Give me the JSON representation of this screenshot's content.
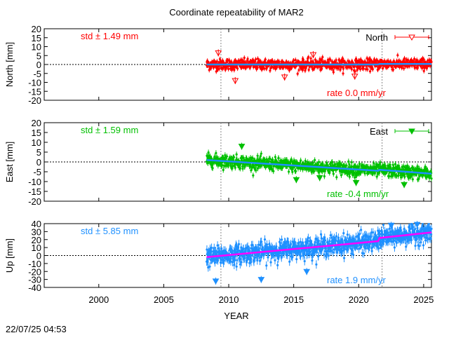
{
  "chart_data": {
    "type": "scatter",
    "title": "Coordinate repeatability of MAR2",
    "xlabel": "YEAR",
    "xlim": [
      1995.8,
      2025.6
    ],
    "xticks": [
      2000,
      2005,
      2010,
      2015,
      2020,
      2025
    ],
    "vlines": [
      2009.4,
      2021.8
    ],
    "timestamp": "22/07/25 04:53",
    "panels": [
      {
        "name": "North",
        "ylabel": "North [mm]",
        "ylim": [
          -20,
          20
        ],
        "yticks": [
          -20,
          -15,
          -10,
          -5,
          0,
          5,
          10,
          15,
          20
        ],
        "color": "#ff0000",
        "trend_color": "#1e90ff",
        "marker": "open-triangle-down",
        "std_label": "std ± 1.49 mm",
        "rate_label": "rate  0.0 mm/yr",
        "legend": "North",
        "data_start": 2008.3,
        "data_end": 2025.6,
        "scatter_sd": 1.49,
        "trend": [
          [
            2008.3,
            0.0
          ],
          [
            2021.5,
            0.0
          ],
          [
            2021.6,
            0.3
          ],
          [
            2025.6,
            0.3
          ]
        ],
        "outliers": [
          [
            2010.5,
            -9.0
          ],
          [
            2014.3,
            -7.0
          ],
          [
            2019.7,
            -6.5
          ],
          [
            2009.2,
            6.5
          ],
          [
            2016.5,
            5.5
          ]
        ]
      },
      {
        "name": "East",
        "ylabel": "East [mm]",
        "ylim": [
          -20,
          20
        ],
        "yticks": [
          -20,
          -15,
          -10,
          -5,
          0,
          5,
          10,
          15,
          20
        ],
        "color": "#00c000",
        "trend_color": "#1e90ff",
        "marker": "filled-triangle-down",
        "std_label": "std ± 1.59 mm",
        "rate_label": "rate -0.4 mm/yr",
        "legend": "East",
        "data_start": 2008.3,
        "data_end": 2025.6,
        "scatter_sd": 1.59,
        "trend": [
          [
            2008.3,
            1.0
          ],
          [
            2021.5,
            -4.5
          ],
          [
            2021.6,
            -4.0
          ],
          [
            2025.6,
            -6.0
          ]
        ],
        "outliers": [
          [
            2011.0,
            8.0
          ],
          [
            2015.2,
            -9.0
          ],
          [
            2019.8,
            -10.5
          ],
          [
            2017.0,
            -8.0
          ],
          [
            2023.5,
            -11.5
          ]
        ]
      },
      {
        "name": "Up",
        "ylabel": "Up [mm]",
        "ylim": [
          -40,
          40
        ],
        "yticks": [
          -40,
          -30,
          -20,
          -10,
          0,
          10,
          20,
          30,
          40
        ],
        "color": "#1e90ff",
        "trend_color": "#ff00ff",
        "marker": "filled-triangle-down",
        "std_label": "std ± 5.85 mm",
        "rate_label": "rate  1.9 mm/yr",
        "legend": "",
        "data_start": 2008.3,
        "data_end": 2025.6,
        "scatter_sd": 5.85,
        "trend": [
          [
            2008.3,
            -2.0
          ],
          [
            2021.5,
            18.0
          ],
          [
            2021.6,
            22.0
          ],
          [
            2025.6,
            29.0
          ]
        ],
        "outliers": [
          [
            2009.0,
            -32.0
          ],
          [
            2012.5,
            -30.0
          ],
          [
            2016.0,
            -20.0
          ],
          [
            2022.5,
            38.0
          ],
          [
            2024.5,
            39.0
          ]
        ]
      }
    ]
  }
}
